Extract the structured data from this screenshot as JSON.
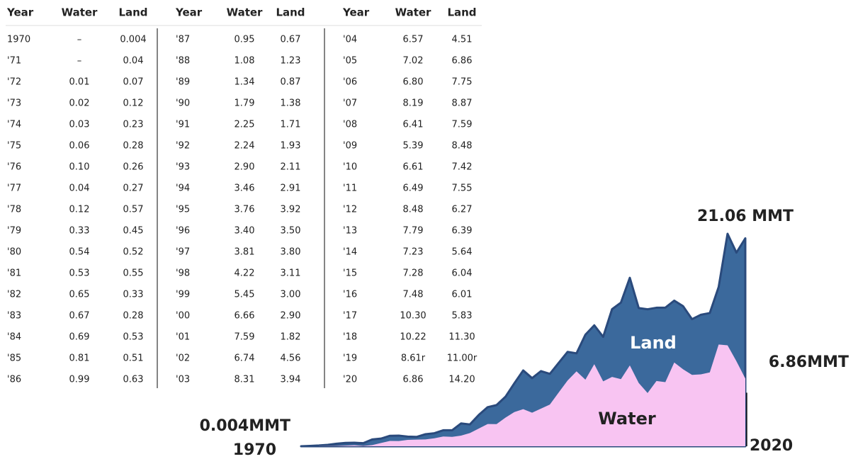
{
  "table": {
    "groups": [
      {
        "header": [
          "Year",
          "Water",
          "Land"
        ],
        "rows": [
          [
            "1970",
            "–",
            "0.004"
          ],
          [
            "'71",
            "–",
            "0.04"
          ],
          [
            "'72",
            "0.01",
            "0.07"
          ],
          [
            "'73",
            "0.02",
            "0.12"
          ],
          [
            "'74",
            "0.03",
            "0.23"
          ],
          [
            "'75",
            "0.06",
            "0.28"
          ],
          [
            "'76",
            "0.10",
            "0.26"
          ],
          [
            "'77",
            "0.04",
            "0.27"
          ],
          [
            "'78",
            "0.12",
            "0.57"
          ],
          [
            "'79",
            "0.33",
            "0.45"
          ],
          [
            "'80",
            "0.54",
            "0.52"
          ],
          [
            "'81",
            "0.53",
            "0.55"
          ],
          [
            "'82",
            "0.65",
            "0.33"
          ],
          [
            "'83",
            "0.67",
            "0.28"
          ],
          [
            "'84",
            "0.69",
            "0.53"
          ],
          [
            "'85",
            "0.81",
            "0.51"
          ],
          [
            "'86",
            "0.99",
            "0.63"
          ]
        ]
      },
      {
        "header": [
          "Year",
          "Water",
          "Land"
        ],
        "rows": [
          [
            "'87",
            "0.95",
            "0.67"
          ],
          [
            "'88",
            "1.08",
            "1.23"
          ],
          [
            "'89",
            "1.34",
            "0.87"
          ],
          [
            "'90",
            "1.79",
            "1.38"
          ],
          [
            "'91",
            "2.25",
            "1.71"
          ],
          [
            "'92",
            "2.24",
            "1.93"
          ],
          [
            "'93",
            "2.90",
            "2.11"
          ],
          [
            "'94",
            "3.46",
            "2.91"
          ],
          [
            "'95",
            "3.76",
            "3.92"
          ],
          [
            "'96",
            "3.40",
            "3.50"
          ],
          [
            "'97",
            "3.81",
            "3.80"
          ],
          [
            "'98",
            "4.22",
            "3.11"
          ],
          [
            "'99",
            "5.45",
            "3.00"
          ],
          [
            "'00",
            "6.66",
            "2.90"
          ],
          [
            "'01",
            "7.59",
            "1.82"
          ],
          [
            "'02",
            "6.74",
            "4.56"
          ],
          [
            "'03",
            "8.31",
            "3.94"
          ]
        ]
      },
      {
        "header": [
          "Year",
          "Water",
          "Land"
        ],
        "rows": [
          [
            "'04",
            "6.57",
            "4.51"
          ],
          [
            "'05",
            "7.02",
            "6.86"
          ],
          [
            "'06",
            "6.80",
            "7.75"
          ],
          [
            "'07",
            "8.19",
            "8.87"
          ],
          [
            "'08",
            "6.41",
            "7.59"
          ],
          [
            "'09",
            "5.39",
            "8.48"
          ],
          [
            "'10",
            "6.61",
            "7.42"
          ],
          [
            "'11",
            "6.49",
            "7.55"
          ],
          [
            "'12",
            "8.48",
            "6.27"
          ],
          [
            "'13",
            "7.79",
            "6.39"
          ],
          [
            "'14",
            "7.23",
            "5.64"
          ],
          [
            "'15",
            "7.28",
            "6.04"
          ],
          [
            "'16",
            "7.48",
            "6.01"
          ],
          [
            "'17",
            "10.30",
            "5.83"
          ],
          [
            "'18",
            "10.22",
            "11.30"
          ],
          [
            "'19",
            "8.61r",
            "11.00r"
          ],
          [
            "'20",
            "6.86",
            "14.20"
          ]
        ]
      }
    ]
  },
  "chart_data": {
    "type": "stacked_area",
    "x": [
      1970,
      1971,
      1972,
      1973,
      1974,
      1975,
      1976,
      1977,
      1978,
      1979,
      1980,
      1981,
      1982,
      1983,
      1984,
      1985,
      1986,
      1987,
      1988,
      1989,
      1990,
      1991,
      1992,
      1993,
      1994,
      1995,
      1996,
      1997,
      1998,
      1999,
      2000,
      2001,
      2002,
      2003,
      2004,
      2005,
      2006,
      2007,
      2008,
      2009,
      2010,
      2011,
      2012,
      2013,
      2014,
      2015,
      2016,
      2017,
      2018,
      2019,
      2020
    ],
    "series": [
      {
        "name": "Water",
        "color": "#f8c4f2",
        "values": [
          null,
          null,
          0.01,
          0.02,
          0.03,
          0.06,
          0.1,
          0.04,
          0.12,
          0.33,
          0.54,
          0.53,
          0.65,
          0.67,
          0.69,
          0.81,
          0.99,
          0.95,
          1.08,
          1.34,
          1.79,
          2.25,
          2.24,
          2.9,
          3.46,
          3.76,
          3.4,
          3.81,
          4.22,
          5.45,
          6.66,
          7.59,
          6.74,
          8.31,
          6.57,
          7.02,
          6.8,
          8.19,
          6.41,
          5.39,
          6.61,
          6.49,
          8.48,
          7.79,
          7.23,
          7.28,
          7.48,
          10.3,
          10.22,
          8.61,
          6.86
        ]
      },
      {
        "name": "Land",
        "color": "#3b699c",
        "values": [
          0.004,
          0.04,
          0.07,
          0.12,
          0.23,
          0.28,
          0.26,
          0.27,
          0.57,
          0.45,
          0.52,
          0.55,
          0.33,
          0.28,
          0.53,
          0.51,
          0.63,
          0.67,
          1.23,
          0.87,
          1.38,
          1.71,
          1.93,
          2.11,
          2.91,
          3.92,
          3.5,
          3.8,
          3.11,
          3.0,
          2.9,
          1.82,
          4.56,
          3.94,
          4.51,
          6.86,
          7.75,
          8.87,
          7.59,
          8.48,
          7.42,
          7.55,
          6.27,
          6.39,
          5.64,
          6.04,
          6.01,
          5.83,
          11.3,
          11.0,
          14.2
        ]
      }
    ],
    "annotations": [
      "21.06 MMT",
      "6.86MMT",
      "0.004MMT",
      "1970",
      "2020"
    ]
  }
}
